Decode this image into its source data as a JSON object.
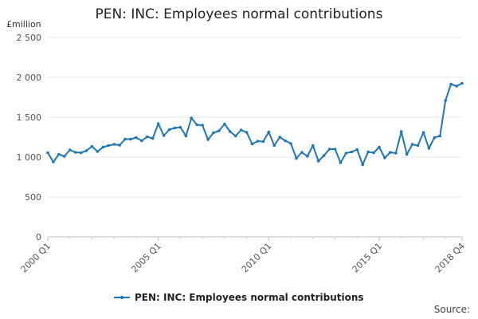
{
  "chart_data": {
    "type": "line",
    "title": "PEN: INC: Employees normal contributions",
    "ylabel": "£million",
    "source_label": "Source:",
    "ylim": [
      0,
      2500
    ],
    "yticks": [
      0,
      500,
      1000,
      1500,
      2000,
      2500
    ],
    "ytick_labels": [
      "0",
      "500",
      "1 000",
      "1 500",
      "2 000",
      "2 500"
    ],
    "xtick_labels": [
      "2000 Q1",
      "2005 Q1",
      "2010 Q1",
      "2015 Q1",
      "2018 Q4"
    ],
    "xtick_indices": [
      0,
      20,
      40,
      60,
      75
    ],
    "grid": true,
    "legend_position": "bottom",
    "series_color": "#1f77b4",
    "series": [
      {
        "name": "PEN: INC: Employees normal contributions",
        "values": [
          1055,
          940,
          1035,
          1010,
          1090,
          1060,
          1055,
          1080,
          1135,
          1070,
          1125,
          1145,
          1160,
          1150,
          1225,
          1225,
          1245,
          1205,
          1255,
          1235,
          1420,
          1270,
          1345,
          1365,
          1375,
          1265,
          1490,
          1405,
          1400,
          1220,
          1305,
          1330,
          1415,
          1320,
          1265,
          1340,
          1310,
          1165,
          1200,
          1195,
          1315,
          1145,
          1250,
          1205,
          1170,
          985,
          1060,
          1010,
          1145,
          950,
          1020,
          1100,
          1100,
          930,
          1050,
          1065,
          1095,
          905,
          1065,
          1055,
          1125,
          990,
          1060,
          1050,
          1320,
          1035,
          1160,
          1145,
          1310,
          1110,
          1245,
          1265,
          1710,
          1915,
          1890,
          1925
        ]
      }
    ]
  }
}
